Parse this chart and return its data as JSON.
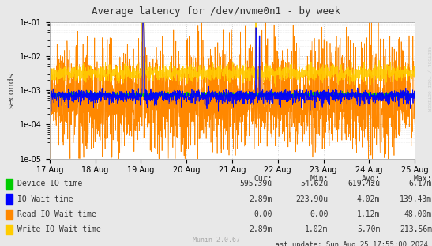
{
  "title": "Average latency for /dev/nvme0n1 - by week",
  "ylabel": "seconds",
  "right_label": "RRDTOOL / TOBI OETIKER",
  "x_ticks": [
    "17 Aug",
    "18 Aug",
    "19 Aug",
    "20 Aug",
    "21 Aug",
    "22 Aug",
    "23 Aug",
    "24 Aug",
    "25 Aug"
  ],
  "bg_color": "#e8e8e8",
  "plot_bg_color": "#ffffff",
  "grid_color": "#cccccc",
  "grid_color_minor": "#dddddd",
  "legend_entries": [
    {
      "label": "Device IO time",
      "color": "#00cc00"
    },
    {
      "label": "IO Wait time",
      "color": "#0000ff"
    },
    {
      "label": "Read IO Wait time",
      "color": "#ff8800"
    },
    {
      "label": "Write IO Wait time",
      "color": "#ffcc00"
    }
  ],
  "legend_stats": {
    "headers": [
      "Cur:",
      "Min:",
      "Avg:",
      "Max:"
    ],
    "rows": [
      [
        "595.39u",
        "54.62u",
        "619.42u",
        "6.17m"
      ],
      [
        "2.89m",
        "223.90u",
        "4.02m",
        "139.43m"
      ],
      [
        "0.00",
        "0.00",
        "1.12m",
        "48.00m"
      ],
      [
        "2.89m",
        "1.02m",
        "5.70m",
        "213.56m"
      ]
    ]
  },
  "footer": "Last update: Sun Aug 25 17:55:00 2024",
  "munin_version": "Munin 2.0.67",
  "seed": 42
}
